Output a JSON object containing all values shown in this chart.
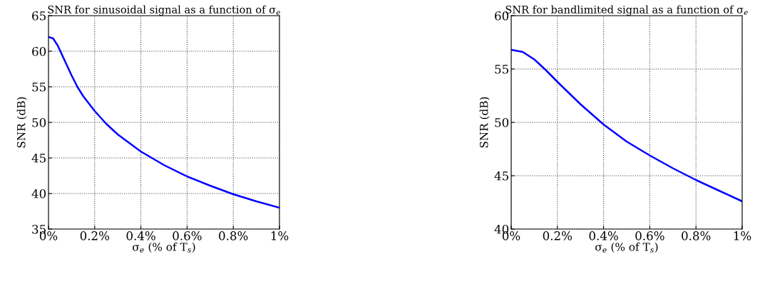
{
  "chart_data": [
    {
      "type": "line",
      "title": "SNR for sinusoidal signal as a function of σ$_{e}$",
      "xlabel": "σ$_{e}$ (% of T$_{s}$)",
      "ylabel": "SNR (dB)",
      "x": [
        0,
        0.02,
        0.04,
        0.06,
        0.08,
        0.1,
        0.125,
        0.15,
        0.2,
        0.25,
        0.3,
        0.4,
        0.5,
        0.6,
        0.7,
        0.8,
        0.9,
        1.0
      ],
      "series": [
        {
          "color": "#0000ff",
          "values": [
            62,
            61.8,
            60.8,
            59.4,
            58,
            56.6,
            55.0,
            53.7,
            51.6,
            49.8,
            48.3,
            45.9,
            44.0,
            42.4,
            41.1,
            39.9,
            38.9,
            38.0
          ]
        }
      ],
      "xlim": [
        0,
        1
      ],
      "xticks": [
        {
          "value": 0,
          "label": "0%"
        },
        {
          "value": 0.2,
          "label": "0.2%"
        },
        {
          "value": 0.4,
          "label": "0.4%"
        },
        {
          "value": 0.6,
          "label": "0.6%"
        },
        {
          "value": 0.8,
          "label": "0.8%"
        },
        {
          "value": 1,
          "label": "1%"
        }
      ],
      "ylim": [
        35,
        65
      ],
      "yticks": [
        35,
        40,
        45,
        50,
        55,
        60,
        65
      ],
      "grid": true,
      "line_style": "solid"
    },
    {
      "type": "line",
      "title": "SNR for bandlimited signal as a function of σ$_{e}$",
      "xlabel": "σ$_{e}$ (% of T$_{s}$)",
      "ylabel": "SNR (dB)",
      "x": [
        0,
        0.05,
        0.1,
        0.15,
        0.2,
        0.3,
        0.4,
        0.5,
        0.6,
        0.7,
        0.8,
        0.9,
        1.0
      ],
      "series": [
        {
          "color": "#0000ff",
          "values": [
            56.8,
            56.6,
            55.9,
            54.9,
            53.8,
            51.7,
            49.8,
            48.2,
            46.9,
            45.7,
            44.6,
            43.6,
            42.6
          ]
        }
      ],
      "xlim": [
        0,
        1
      ],
      "xticks": [
        {
          "value": 0,
          "label": "0%"
        },
        {
          "value": 0.2,
          "label": "0.2%"
        },
        {
          "value": 0.4,
          "label": "0.4%"
        },
        {
          "value": 0.6,
          "label": "0.6%"
        },
        {
          "value": 0.8,
          "label": "0.8%"
        },
        {
          "value": 1,
          "label": "1%"
        }
      ],
      "ylim": [
        40,
        60
      ],
      "yticks": [
        40,
        45,
        50,
        55,
        60
      ],
      "grid": true,
      "line_style": "solid"
    }
  ]
}
